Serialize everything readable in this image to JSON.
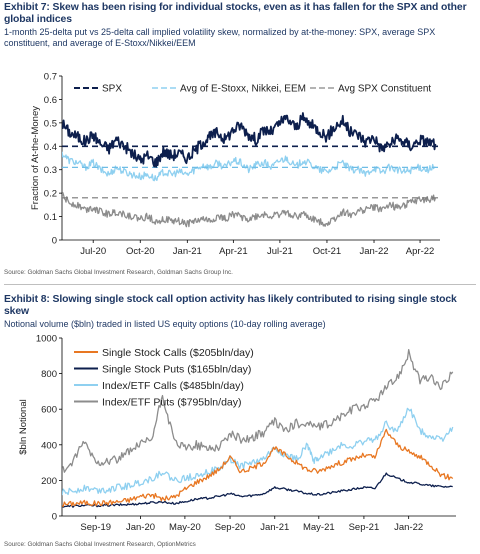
{
  "exhibits": [
    {
      "title": "Exhibit 7: Skew has been rising for individual stocks, even as it has fallen for the SPX and other global indices",
      "subtitle": "1-month 25-delta put vs 25-delta call implied volatility skew, normalized by at-the-money: SPX, average SPX constituent, and average of E-Stoxx/Nikkei/EEM",
      "source": "Source: Goldman Sachs Global Investment Research, Goldman Sachs Group Inc."
    },
    {
      "title": "Exhibit 8: Slowing single stock call option activity has likely contributed to rising single stock skew",
      "subtitle": "Notional volume ($bln) traded in listed US equity options (10-day rolling average)",
      "source": "Source: Goldman Sachs Global Investment Research, OptionMetrics"
    }
  ],
  "chart_data": [
    {
      "type": "line",
      "title": "Exhibit 7: Skew has been rising for individual stocks, even as it has fallen for the SPX and other global indices",
      "ylabel": "Fraction of At-the-Money",
      "xlabel": "",
      "ylim": [
        0,
        0.7
      ],
      "yticks": [
        "0",
        "0.1",
        "0.2",
        "0.3",
        "0.4",
        "0.5",
        "0.6",
        "0.7"
      ],
      "xlim": [
        "2020-05-01",
        "2022-05-10"
      ],
      "xticks": [
        {
          "date": "2020-07-01",
          "label": "Jul-20"
        },
        {
          "date": "2020-10-01",
          "label": "Oct-20"
        },
        {
          "date": "2021-01-01",
          "label": "Jan-21"
        },
        {
          "date": "2021-04-01",
          "label": "Apr-21"
        },
        {
          "date": "2021-07-01",
          "label": "Jul-21"
        },
        {
          "date": "2021-10-01",
          "label": "Oct-21"
        },
        {
          "date": "2022-01-01",
          "label": "Jan-22"
        },
        {
          "date": "2022-04-01",
          "label": "Apr-22"
        }
      ],
      "grid": false,
      "legend_position": "top",
      "series": [
        {
          "name": "SPX",
          "color": "#0d1f4d",
          "style": "solid-thick",
          "average": 0.4,
          "x": [
            "2020-05-01",
            "2020-05-15",
            "2020-06-01",
            "2020-06-15",
            "2020-07-01",
            "2020-07-15",
            "2020-08-01",
            "2020-08-15",
            "2020-09-01",
            "2020-09-15",
            "2020-10-01",
            "2020-10-15",
            "2020-11-01",
            "2020-11-15",
            "2020-12-01",
            "2020-12-15",
            "2021-01-01",
            "2021-01-15",
            "2021-02-01",
            "2021-02-15",
            "2021-03-01",
            "2021-03-15",
            "2021-04-01",
            "2021-04-15",
            "2021-05-01",
            "2021-05-15",
            "2021-06-01",
            "2021-06-15",
            "2021-07-01",
            "2021-07-15",
            "2021-08-01",
            "2021-08-15",
            "2021-09-01",
            "2021-09-15",
            "2021-10-01",
            "2021-10-15",
            "2021-11-01",
            "2021-11-15",
            "2021-12-01",
            "2021-12-15",
            "2022-01-01",
            "2022-01-15",
            "2022-02-01",
            "2022-02-15",
            "2022-03-01",
            "2022-03-15",
            "2022-04-01",
            "2022-04-15",
            "2022-05-01"
          ],
          "y": [
            0.5,
            0.46,
            0.44,
            0.42,
            0.45,
            0.41,
            0.39,
            0.43,
            0.4,
            0.37,
            0.34,
            0.36,
            0.33,
            0.38,
            0.36,
            0.37,
            0.35,
            0.38,
            0.42,
            0.44,
            0.46,
            0.43,
            0.47,
            0.49,
            0.45,
            0.43,
            0.47,
            0.46,
            0.5,
            0.52,
            0.48,
            0.52,
            0.49,
            0.47,
            0.44,
            0.48,
            0.51,
            0.46,
            0.45,
            0.42,
            0.44,
            0.39,
            0.41,
            0.43,
            0.42,
            0.4,
            0.43,
            0.42,
            0.41
          ]
        },
        {
          "name": "Avg of E-Stoxx, Nikkei, EEM",
          "color": "#8fd0f0",
          "style": "solid",
          "average": 0.31,
          "x": [
            "2020-05-01",
            "2020-05-15",
            "2020-06-01",
            "2020-06-15",
            "2020-07-01",
            "2020-07-15",
            "2020-08-01",
            "2020-08-15",
            "2020-09-01",
            "2020-09-15",
            "2020-10-01",
            "2020-10-15",
            "2020-11-01",
            "2020-11-15",
            "2020-12-01",
            "2020-12-15",
            "2021-01-01",
            "2021-01-15",
            "2021-02-01",
            "2021-02-15",
            "2021-03-01",
            "2021-03-15",
            "2021-04-01",
            "2021-04-15",
            "2021-05-01",
            "2021-05-15",
            "2021-06-01",
            "2021-06-15",
            "2021-07-01",
            "2021-07-15",
            "2021-08-01",
            "2021-08-15",
            "2021-09-01",
            "2021-09-15",
            "2021-10-01",
            "2021-10-15",
            "2021-11-01",
            "2021-11-15",
            "2021-12-01",
            "2021-12-15",
            "2022-01-01",
            "2022-01-15",
            "2022-02-01",
            "2022-02-15",
            "2022-03-01",
            "2022-03-15",
            "2022-04-01",
            "2022-04-15",
            "2022-05-01"
          ],
          "y": [
            0.37,
            0.34,
            0.33,
            0.31,
            0.33,
            0.3,
            0.28,
            0.31,
            0.29,
            0.28,
            0.27,
            0.28,
            0.26,
            0.29,
            0.28,
            0.29,
            0.28,
            0.3,
            0.32,
            0.31,
            0.33,
            0.31,
            0.34,
            0.33,
            0.3,
            0.32,
            0.33,
            0.31,
            0.34,
            0.35,
            0.31,
            0.34,
            0.32,
            0.3,
            0.29,
            0.31,
            0.33,
            0.3,
            0.3,
            0.28,
            0.31,
            0.29,
            0.31,
            0.3,
            0.29,
            0.3,
            0.31,
            0.3,
            0.31
          ]
        },
        {
          "name": "Avg SPX Constituent",
          "color": "#8c8c8c",
          "style": "solid",
          "average": 0.18,
          "x": [
            "2020-05-01",
            "2020-05-15",
            "2020-06-01",
            "2020-06-15",
            "2020-07-01",
            "2020-07-15",
            "2020-08-01",
            "2020-08-15",
            "2020-09-01",
            "2020-09-15",
            "2020-10-01",
            "2020-10-15",
            "2020-11-01",
            "2020-11-15",
            "2020-12-01",
            "2020-12-15",
            "2021-01-01",
            "2021-01-15",
            "2021-02-01",
            "2021-02-15",
            "2021-03-01",
            "2021-03-15",
            "2021-04-01",
            "2021-04-15",
            "2021-05-01",
            "2021-05-15",
            "2021-06-01",
            "2021-06-15",
            "2021-07-01",
            "2021-07-15",
            "2021-08-01",
            "2021-08-15",
            "2021-09-01",
            "2021-09-15",
            "2021-10-01",
            "2021-10-15",
            "2021-11-01",
            "2021-11-15",
            "2021-12-01",
            "2021-12-15",
            "2022-01-01",
            "2022-01-15",
            "2022-02-01",
            "2022-02-15",
            "2022-03-01",
            "2022-03-15",
            "2022-04-01",
            "2022-04-15",
            "2022-05-01"
          ],
          "y": [
            0.19,
            0.16,
            0.15,
            0.13,
            0.14,
            0.12,
            0.11,
            0.12,
            0.11,
            0.1,
            0.09,
            0.1,
            0.08,
            0.09,
            0.08,
            0.08,
            0.07,
            0.08,
            0.09,
            0.08,
            0.1,
            0.09,
            0.11,
            0.1,
            0.09,
            0.1,
            0.11,
            0.1,
            0.11,
            0.12,
            0.1,
            0.11,
            0.09,
            0.08,
            0.07,
            0.09,
            0.12,
            0.11,
            0.12,
            0.13,
            0.14,
            0.13,
            0.15,
            0.14,
            0.15,
            0.16,
            0.17,
            0.17,
            0.18
          ]
        }
      ]
    },
    {
      "type": "line",
      "title": "Exhibit 8: Slowing single stock call option activity has likely contributed to rising single stock skew",
      "ylabel": "$bln Notional",
      "xlabel": "",
      "ylim": [
        0,
        1000
      ],
      "yticks": [
        "0",
        "200",
        "400",
        "600",
        "800",
        "1000"
      ],
      "xlim": [
        "2019-06-01",
        "2022-05-10"
      ],
      "xticks": [
        {
          "date": "2019-09-01",
          "label": "Sep-19"
        },
        {
          "date": "2020-01-01",
          "label": "Jan-20"
        },
        {
          "date": "2020-05-01",
          "label": "May-20"
        },
        {
          "date": "2020-09-01",
          "label": "Sep-20"
        },
        {
          "date": "2021-01-01",
          "label": "Jan-21"
        },
        {
          "date": "2021-05-01",
          "label": "May-21"
        },
        {
          "date": "2021-09-01",
          "label": "Sep-21"
        },
        {
          "date": "2022-01-01",
          "label": "Jan-22"
        }
      ],
      "grid": false,
      "legend_position": "top-left",
      "series": [
        {
          "name": "Single Stock Calls ($205bln/day)",
          "color": "#e87722",
          "x": [
            "2019-06-01",
            "2019-07-01",
            "2019-08-01",
            "2019-09-01",
            "2019-10-01",
            "2019-11-01",
            "2019-12-01",
            "2020-01-01",
            "2020-02-01",
            "2020-03-01",
            "2020-04-01",
            "2020-05-01",
            "2020-06-01",
            "2020-07-01",
            "2020-08-01",
            "2020-09-01",
            "2020-10-01",
            "2020-11-01",
            "2020-12-01",
            "2021-01-01",
            "2021-02-01",
            "2021-03-01",
            "2021-04-01",
            "2021-05-01",
            "2021-06-01",
            "2021-07-01",
            "2021-08-01",
            "2021-09-01",
            "2021-10-01",
            "2021-11-01",
            "2021-12-01",
            "2022-01-01",
            "2022-02-01",
            "2022-03-01",
            "2022-04-01",
            "2022-05-01"
          ],
          "y": [
            65,
            70,
            75,
            70,
            75,
            80,
            90,
            110,
            120,
            95,
            105,
            150,
            190,
            220,
            260,
            330,
            250,
            270,
            300,
            380,
            340,
            300,
            260,
            250,
            280,
            300,
            320,
            340,
            330,
            480,
            400,
            360,
            330,
            290,
            230,
            210
          ]
        },
        {
          "name": "Single Stock Puts ($165bln/day)",
          "color": "#0d1f4d",
          "x": [
            "2019-06-01",
            "2019-07-01",
            "2019-08-01",
            "2019-09-01",
            "2019-10-01",
            "2019-11-01",
            "2019-12-01",
            "2020-01-01",
            "2020-02-01",
            "2020-03-01",
            "2020-04-01",
            "2020-05-01",
            "2020-06-01",
            "2020-07-01",
            "2020-08-01",
            "2020-09-01",
            "2020-10-01",
            "2020-11-01",
            "2020-12-01",
            "2021-01-01",
            "2021-02-01",
            "2021-03-01",
            "2021-04-01",
            "2021-05-01",
            "2021-06-01",
            "2021-07-01",
            "2021-08-01",
            "2021-09-01",
            "2021-10-01",
            "2021-11-01",
            "2021-12-01",
            "2022-01-01",
            "2022-02-01",
            "2022-03-01",
            "2022-04-01",
            "2022-05-01"
          ],
          "y": [
            55,
            55,
            60,
            58,
            60,
            62,
            65,
            70,
            75,
            80,
            70,
            80,
            95,
            100,
            110,
            125,
            110,
            115,
            125,
            160,
            150,
            140,
            125,
            120,
            130,
            140,
            150,
            160,
            155,
            240,
            210,
            190,
            180,
            170,
            165,
            165
          ]
        },
        {
          "name": "Index/ETF Calls ($485bln/day)",
          "color": "#8fd0f0",
          "x": [
            "2019-06-01",
            "2019-07-01",
            "2019-08-01",
            "2019-09-01",
            "2019-10-01",
            "2019-11-01",
            "2019-12-01",
            "2020-01-01",
            "2020-02-01",
            "2020-03-01",
            "2020-04-01",
            "2020-05-01",
            "2020-06-01",
            "2020-07-01",
            "2020-08-01",
            "2020-09-01",
            "2020-10-01",
            "2020-11-01",
            "2020-12-01",
            "2021-01-01",
            "2021-02-01",
            "2021-03-01",
            "2021-04-01",
            "2021-04-15",
            "2021-05-01",
            "2021-06-01",
            "2021-07-01",
            "2021-08-01",
            "2021-09-01",
            "2021-10-01",
            "2021-11-01",
            "2021-12-01",
            "2022-01-01",
            "2022-02-01",
            "2022-03-01",
            "2022-04-01",
            "2022-05-01"
          ],
          "y": [
            130,
            140,
            160,
            145,
            150,
            160,
            170,
            190,
            210,
            250,
            200,
            210,
            230,
            250,
            260,
            320,
            280,
            300,
            320,
            380,
            340,
            320,
            400,
            310,
            330,
            360,
            400,
            390,
            420,
            430,
            520,
            470,
            610,
            480,
            450,
            430,
            500
          ]
        },
        {
          "name": "Index/ETF Puts ($795bln/day)",
          "color": "#8c8c8c",
          "x": [
            "2019-06-01",
            "2019-07-01",
            "2019-08-01",
            "2019-09-01",
            "2019-10-01",
            "2019-11-01",
            "2019-12-01",
            "2020-01-01",
            "2020-02-01",
            "2020-03-01",
            "2020-04-01",
            "2020-05-01",
            "2020-06-01",
            "2020-07-01",
            "2020-08-01",
            "2020-09-01",
            "2020-10-01",
            "2020-11-01",
            "2020-12-01",
            "2021-01-01",
            "2021-02-01",
            "2021-03-01",
            "2021-04-01",
            "2021-05-01",
            "2021-06-01",
            "2021-07-01",
            "2021-08-01",
            "2021-09-01",
            "2021-10-01",
            "2021-11-01",
            "2021-12-01",
            "2022-01-01",
            "2022-02-01",
            "2022-03-01",
            "2022-04-01",
            "2022-05-01"
          ],
          "y": [
            250,
            300,
            420,
            300,
            310,
            320,
            360,
            400,
            430,
            680,
            420,
            380,
            400,
            380,
            390,
            460,
            430,
            440,
            470,
            530,
            480,
            520,
            520,
            500,
            520,
            560,
            600,
            620,
            650,
            720,
            780,
            910,
            760,
            780,
            720,
            810
          ]
        }
      ]
    }
  ]
}
